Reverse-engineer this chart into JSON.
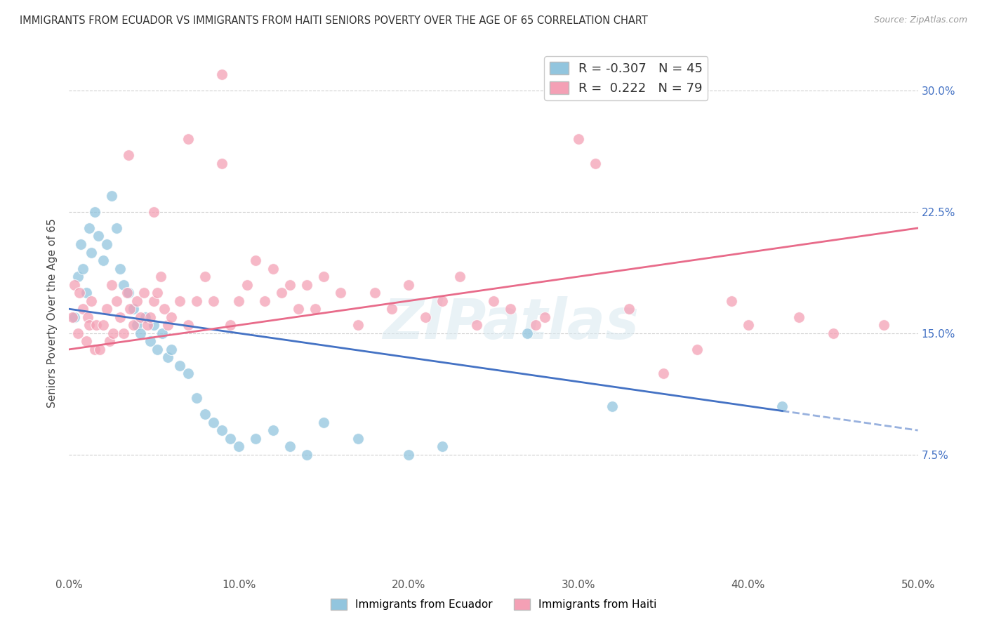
{
  "title": "IMMIGRANTS FROM ECUADOR VS IMMIGRANTS FROM HAITI SENIORS POVERTY OVER THE AGE OF 65 CORRELATION CHART",
  "source": "Source: ZipAtlas.com",
  "ylabel": "Seniors Poverty Over the Age of 65",
  "ytick_labels": [
    "7.5%",
    "15.0%",
    "22.5%",
    "30.0%"
  ],
  "ytick_values": [
    7.5,
    15.0,
    22.5,
    30.0
  ],
  "xlim": [
    0.0,
    50.0
  ],
  "ylim": [
    0.0,
    32.5
  ],
  "ecuador_color": "#92c5de",
  "haiti_color": "#f4a0b5",
  "ecuador_line_color": "#4472c4",
  "haiti_line_color": "#e86b8a",
  "ecuador_R": -0.307,
  "ecuador_N": 45,
  "haiti_R": 0.222,
  "haiti_N": 79,
  "legend_label_ecuador": "Immigrants from Ecuador",
  "legend_label_haiti": "Immigrants from Haiti",
  "watermark": "ZIPatlas",
  "ecuador_points": [
    [
      0.3,
      16.0
    ],
    [
      0.5,
      18.5
    ],
    [
      0.7,
      20.5
    ],
    [
      0.8,
      19.0
    ],
    [
      1.0,
      17.5
    ],
    [
      1.2,
      21.5
    ],
    [
      1.3,
      20.0
    ],
    [
      1.5,
      22.5
    ],
    [
      1.7,
      21.0
    ],
    [
      2.0,
      19.5
    ],
    [
      2.2,
      20.5
    ],
    [
      2.5,
      23.5
    ],
    [
      2.8,
      21.5
    ],
    [
      3.0,
      19.0
    ],
    [
      3.2,
      18.0
    ],
    [
      3.5,
      17.5
    ],
    [
      3.8,
      16.5
    ],
    [
      4.0,
      15.5
    ],
    [
      4.2,
      15.0
    ],
    [
      4.5,
      16.0
    ],
    [
      4.8,
      14.5
    ],
    [
      5.0,
      15.5
    ],
    [
      5.2,
      14.0
    ],
    [
      5.5,
      15.0
    ],
    [
      5.8,
      13.5
    ],
    [
      6.0,
      14.0
    ],
    [
      6.5,
      13.0
    ],
    [
      7.0,
      12.5
    ],
    [
      7.5,
      11.0
    ],
    [
      8.0,
      10.0
    ],
    [
      8.5,
      9.5
    ],
    [
      9.0,
      9.0
    ],
    [
      9.5,
      8.5
    ],
    [
      10.0,
      8.0
    ],
    [
      11.0,
      8.5
    ],
    [
      12.0,
      9.0
    ],
    [
      13.0,
      8.0
    ],
    [
      14.0,
      7.5
    ],
    [
      15.0,
      9.5
    ],
    [
      17.0,
      8.5
    ],
    [
      20.0,
      7.5
    ],
    [
      22.0,
      8.0
    ],
    [
      27.0,
      15.0
    ],
    [
      32.0,
      10.5
    ],
    [
      42.0,
      10.5
    ]
  ],
  "haiti_points": [
    [
      0.2,
      16.0
    ],
    [
      0.3,
      18.0
    ],
    [
      0.5,
      15.0
    ],
    [
      0.6,
      17.5
    ],
    [
      0.8,
      16.5
    ],
    [
      1.0,
      14.5
    ],
    [
      1.1,
      16.0
    ],
    [
      1.2,
      15.5
    ],
    [
      1.3,
      17.0
    ],
    [
      1.5,
      14.0
    ],
    [
      1.6,
      15.5
    ],
    [
      1.8,
      14.0
    ],
    [
      2.0,
      15.5
    ],
    [
      2.2,
      16.5
    ],
    [
      2.4,
      14.5
    ],
    [
      2.5,
      18.0
    ],
    [
      2.6,
      15.0
    ],
    [
      2.8,
      17.0
    ],
    [
      3.0,
      16.0
    ],
    [
      3.2,
      15.0
    ],
    [
      3.4,
      17.5
    ],
    [
      3.6,
      16.5
    ],
    [
      3.8,
      15.5
    ],
    [
      4.0,
      17.0
    ],
    [
      4.2,
      16.0
    ],
    [
      4.4,
      17.5
    ],
    [
      4.6,
      15.5
    ],
    [
      4.8,
      16.0
    ],
    [
      5.0,
      17.0
    ],
    [
      5.2,
      17.5
    ],
    [
      5.4,
      18.5
    ],
    [
      5.6,
      16.5
    ],
    [
      5.8,
      15.5
    ],
    [
      6.0,
      16.0
    ],
    [
      6.5,
      17.0
    ],
    [
      7.0,
      15.5
    ],
    [
      7.5,
      17.0
    ],
    [
      8.0,
      18.5
    ],
    [
      8.5,
      17.0
    ],
    [
      9.0,
      25.5
    ],
    [
      9.5,
      15.5
    ],
    [
      10.0,
      17.0
    ],
    [
      10.5,
      18.0
    ],
    [
      11.0,
      19.5
    ],
    [
      11.5,
      17.0
    ],
    [
      12.0,
      19.0
    ],
    [
      12.5,
      17.5
    ],
    [
      13.0,
      18.0
    ],
    [
      13.5,
      16.5
    ],
    [
      14.0,
      18.0
    ],
    [
      14.5,
      16.5
    ],
    [
      15.0,
      18.5
    ],
    [
      16.0,
      17.5
    ],
    [
      17.0,
      15.5
    ],
    [
      18.0,
      17.5
    ],
    [
      19.0,
      16.5
    ],
    [
      20.0,
      18.0
    ],
    [
      21.0,
      16.0
    ],
    [
      22.0,
      17.0
    ],
    [
      23.0,
      18.5
    ],
    [
      24.0,
      15.5
    ],
    [
      25.0,
      17.0
    ],
    [
      26.0,
      16.5
    ],
    [
      27.5,
      15.5
    ],
    [
      28.0,
      16.0
    ],
    [
      30.0,
      27.0
    ],
    [
      31.0,
      25.5
    ],
    [
      33.0,
      16.5
    ],
    [
      35.0,
      12.5
    ],
    [
      37.0,
      14.0
    ],
    [
      39.0,
      17.0
    ],
    [
      40.0,
      15.5
    ],
    [
      43.0,
      16.0
    ],
    [
      45.0,
      15.0
    ],
    [
      48.0,
      15.5
    ],
    [
      29.5,
      31.0
    ],
    [
      9.0,
      31.0
    ],
    [
      7.0,
      27.0
    ],
    [
      3.5,
      26.0
    ],
    [
      5.0,
      22.5
    ]
  ]
}
